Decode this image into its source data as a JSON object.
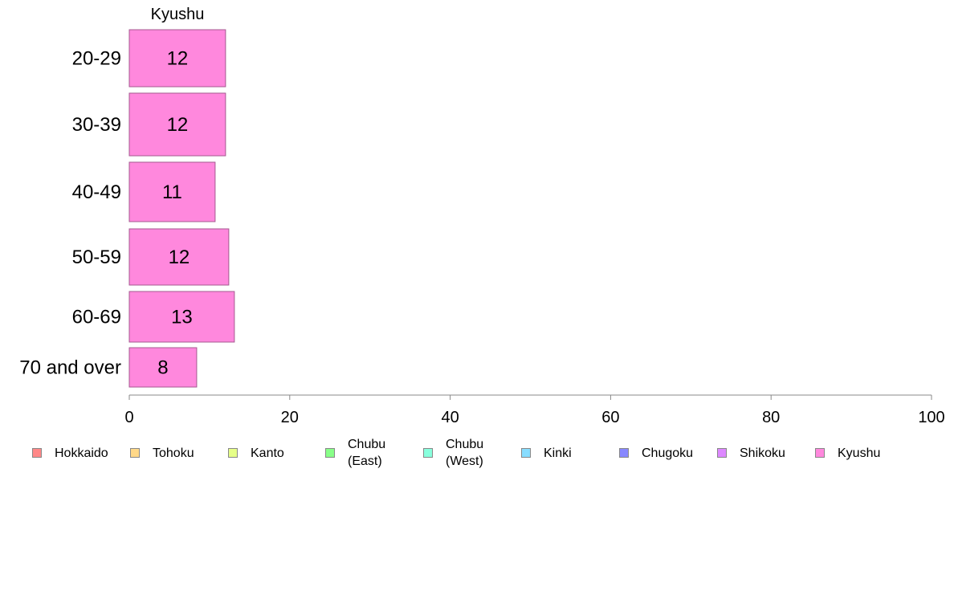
{
  "chart_data": {
    "type": "bar",
    "orientation": "horizontal",
    "title": "Kyushu",
    "categories": [
      "20-29",
      "30-39",
      "40-49",
      "50-59",
      "60-69",
      "70 and over"
    ],
    "series": [
      {
        "name": "Kyushu",
        "values": [
          12,
          12,
          10.7,
          12.4,
          13.1,
          8.4
        ],
        "labels": [
          "12",
          "12",
          "11",
          "12",
          "13",
          "8"
        ],
        "color": "#ff88dd"
      }
    ],
    "xlim": [
      0,
      100
    ],
    "xticks": [
      "0",
      "20",
      "40",
      "60",
      "80",
      "100"
    ],
    "grid": false,
    "legend_position": "bottom"
  },
  "legend": {
    "items": [
      {
        "label": "Hokkaido",
        "color": "#ff8888"
      },
      {
        "label": "Tohoku",
        "color": "#ffd888"
      },
      {
        "label": "Kanto",
        "color": "#e6ff88"
      },
      {
        "label": "Chubu (East)",
        "line1": "Chubu",
        "line2": "(East)",
        "color": "#88ff88"
      },
      {
        "label": "Chubu (West)",
        "line1": "Chubu",
        "line2": "(West)",
        "color": "#88ffdd"
      },
      {
        "label": "Kinki",
        "color": "#88ddff"
      },
      {
        "label": "Chugoku",
        "color": "#8888ff"
      },
      {
        "label": "Shikoku",
        "color": "#dd88ff"
      },
      {
        "label": "Kyushu",
        "color": "#ff88dd"
      }
    ]
  }
}
